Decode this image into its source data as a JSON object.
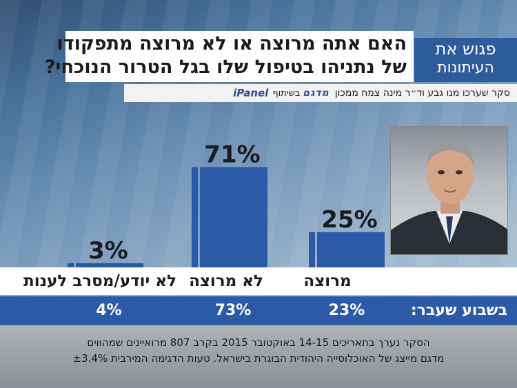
{
  "question": {
    "line1": "האם אתה מרוצה או לא מרוצה מתפקודו",
    "line2": "של נתניהו בטיפול שלו בגל הטרור הנוכחי?"
  },
  "logo": {
    "line1": "פגוש את",
    "line2": "העיתונות"
  },
  "credits": {
    "survey": "סקר שערכו מנו גבע וד״ר מינה צמח ממכון",
    "partner1": "מדגם",
    "cooperation": "בשיתוף",
    "partner2": "iPanel"
  },
  "chart_data": {
    "type": "bar",
    "title": "האם אתה מרוצה או לא מרוצה מתפקודו של נתניהו בטיפול שלו בגל הטרור הנוכחי?",
    "categories": [
      "מרוצה",
      "לא מרוצה",
      "לא יודע/מסרב לענות"
    ],
    "series": [
      {
        "name": "current",
        "values": [
          25,
          71,
          3
        ],
        "labels": [
          "25%",
          "71%",
          "3%"
        ]
      },
      {
        "name": "בשבוע שעבר:",
        "values": [
          23,
          73,
          4
        ],
        "labels": [
          "23%",
          "73%",
          "4%"
        ]
      }
    ],
    "ylim": [
      0,
      100
    ],
    "xlabel": "",
    "ylabel": "",
    "colors": {
      "bar": "#2a5aa8",
      "bar_stripe": "#ffffff",
      "label": "#1b1b1b"
    }
  },
  "footnote": {
    "line1": "הסקר נערך בתאריכים 14-15 באוקטובר 2015 בקרב 807 מרואיינים שמהווים",
    "line2": "מדגם מייצג של האוכלוסייה היהודית הבוגרת בישראל. טעות הדגימה המירבית ±3.4%"
  }
}
